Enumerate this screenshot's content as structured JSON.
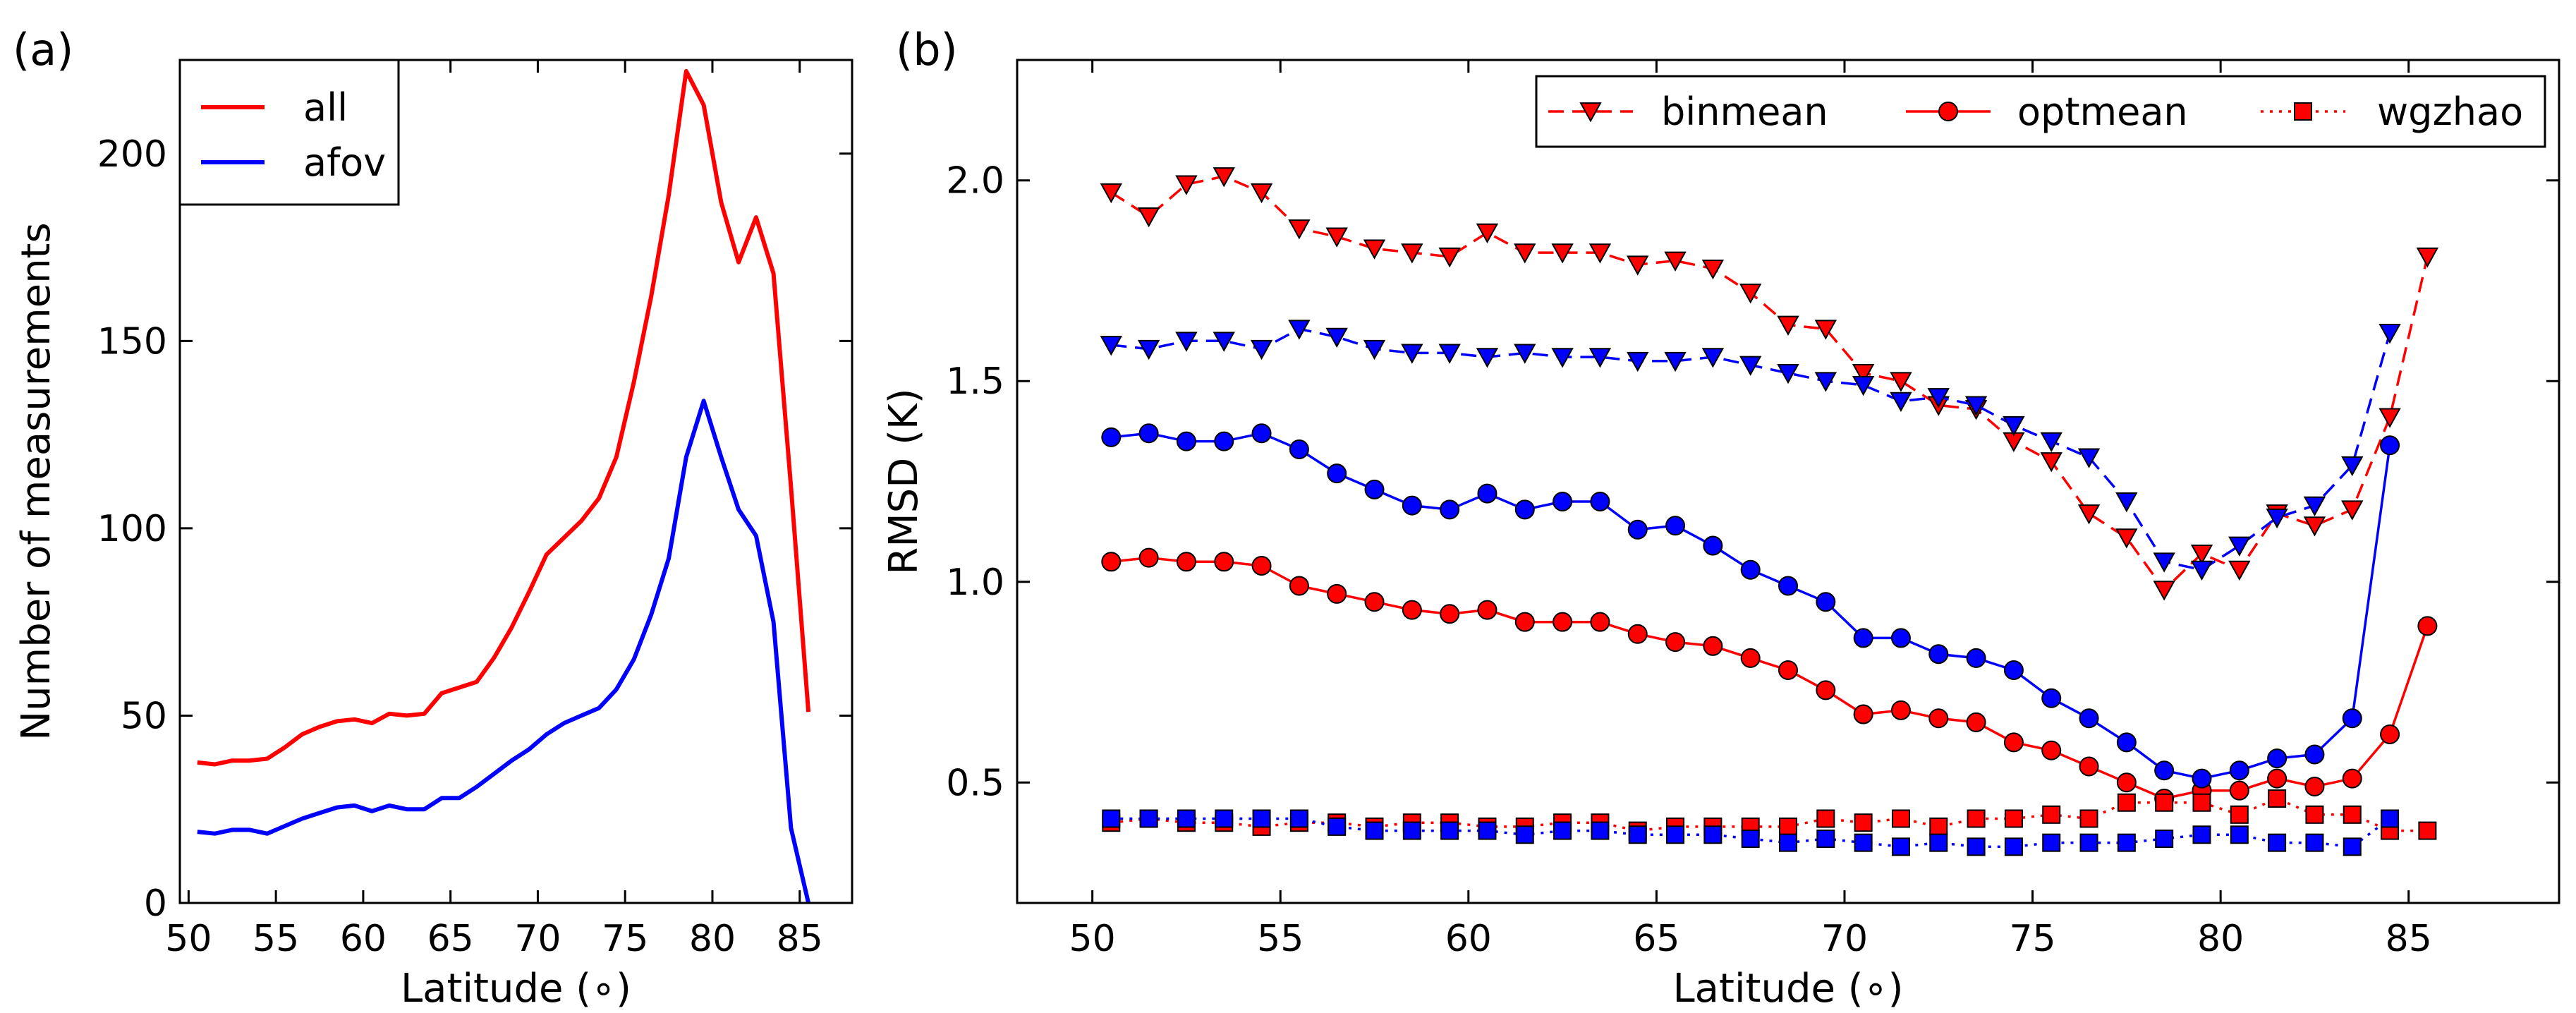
{
  "figure": {
    "panel_a_label": "(a)",
    "panel_b_label": "(b)"
  },
  "chart_data": [
    {
      "id": "a",
      "type": "line",
      "title": "",
      "xlabel": "Latitude (∘)",
      "ylabel": "Number of measurements",
      "xlim": [
        49.5,
        88
      ],
      "ylim": [
        0,
        225
      ],
      "xticks": [
        50,
        55,
        60,
        65,
        70,
        75,
        80,
        85
      ],
      "yticks": [
        0,
        50,
        100,
        150,
        200
      ],
      "grid": false,
      "legend": {
        "placement": "top-left"
      },
      "x": [
        50.5,
        51.5,
        52.5,
        53.5,
        54.5,
        55.5,
        56.5,
        57.5,
        58.5,
        59.5,
        60.5,
        61.5,
        62.5,
        63.5,
        64.5,
        65.5,
        66.5,
        67.5,
        68.5,
        69.5,
        70.5,
        71.5,
        72.5,
        73.5,
        74.5,
        75.5,
        76.5,
        77.5,
        78.5,
        79.5,
        80.5,
        81.5,
        82.5,
        83.5,
        84.5,
        85.5
      ],
      "series": [
        {
          "name": "all",
          "color": "#ff0000",
          "values": [
            37.5,
            37,
            38,
            38,
            38.5,
            41.5,
            45,
            47,
            48.5,
            49,
            48,
            50.5,
            50,
            50.5,
            56,
            57.5,
            59,
            65.5,
            73.5,
            83,
            93,
            97.5,
            102,
            108,
            119,
            139,
            162,
            189,
            222,
            213,
            187,
            171,
            183,
            168,
            111,
            51
          ]
        },
        {
          "name": "afov",
          "color": "#0000ff",
          "values": [
            19,
            18.5,
            19.5,
            19.5,
            18.5,
            20.5,
            22.5,
            24,
            25.5,
            26,
            24.5,
            26,
            25,
            25,
            28,
            28,
            31,
            34.5,
            38,
            41,
            45,
            48,
            50,
            52,
            57,
            65,
            77,
            92,
            119,
            134,
            119,
            105,
            98,
            75,
            20,
            0
          ]
        }
      ]
    },
    {
      "id": "b",
      "type": "line",
      "title": "",
      "xlabel": "Latitude (∘)",
      "ylabel": "RMSD (K)",
      "xlim": [
        48,
        89
      ],
      "ylim": [
        0.2,
        2.3
      ],
      "xticks": [
        50,
        55,
        60,
        65,
        70,
        75,
        80,
        85
      ],
      "yticks": [
        0.5,
        1.0,
        1.5,
        2.0
      ],
      "ytick_labels": [
        "0.5",
        "1.0",
        "1.5",
        "2.0"
      ],
      "grid": false,
      "legend": {
        "placement": "top-right",
        "entries": [
          "binmean",
          "optmean",
          "wgzhao"
        ]
      },
      "x": [
        50.5,
        51.5,
        52.5,
        53.5,
        54.5,
        55.5,
        56.5,
        57.5,
        58.5,
        59.5,
        60.5,
        61.5,
        62.5,
        63.5,
        64.5,
        65.5,
        66.5,
        67.5,
        68.5,
        69.5,
        70.5,
        71.5,
        72.5,
        73.5,
        74.5,
        75.5,
        76.5,
        77.5,
        78.5,
        79.5,
        80.5,
        81.5,
        82.5,
        83.5,
        84.5,
        85.5
      ],
      "series": [
        {
          "name": "binmean",
          "color": "#ff0000",
          "marker": "triangle-down",
          "linestyle": "dashed",
          "values": [
            1.97,
            1.91,
            1.99,
            2.01,
            1.97,
            1.88,
            1.86,
            1.83,
            1.82,
            1.81,
            1.87,
            1.82,
            1.82,
            1.82,
            1.79,
            1.8,
            1.78,
            1.72,
            1.64,
            1.63,
            1.52,
            1.5,
            1.44,
            1.43,
            1.35,
            1.3,
            1.17,
            1.11,
            0.98,
            1.07,
            1.03,
            1.17,
            1.14,
            1.18,
            1.41,
            1.81
          ]
        },
        {
          "name": "binmean",
          "color": "#0000ff",
          "marker": "triangle-down",
          "linestyle": "dashed",
          "values": [
            1.59,
            1.58,
            1.6,
            1.6,
            1.58,
            1.63,
            1.61,
            1.58,
            1.57,
            1.57,
            1.56,
            1.57,
            1.56,
            1.56,
            1.55,
            1.55,
            1.56,
            1.54,
            1.52,
            1.5,
            1.49,
            1.45,
            1.46,
            1.44,
            1.39,
            1.35,
            1.31,
            1.2,
            1.05,
            1.03,
            1.09,
            1.16,
            1.19,
            1.29,
            1.62,
            null
          ]
        },
        {
          "name": "optmean",
          "color": "#ff0000",
          "marker": "circle",
          "linestyle": "solid",
          "values": [
            1.05,
            1.06,
            1.05,
            1.05,
            1.04,
            0.99,
            0.97,
            0.95,
            0.93,
            0.92,
            0.93,
            0.9,
            0.9,
            0.9,
            0.87,
            0.85,
            0.84,
            0.81,
            0.78,
            0.73,
            0.67,
            0.68,
            0.66,
            0.65,
            0.6,
            0.58,
            0.54,
            0.5,
            0.46,
            0.48,
            0.48,
            0.51,
            0.49,
            0.51,
            0.62,
            0.89
          ]
        },
        {
          "name": "optmean",
          "color": "#0000ff",
          "marker": "circle",
          "linestyle": "solid",
          "values": [
            1.36,
            1.37,
            1.35,
            1.35,
            1.37,
            1.33,
            1.27,
            1.23,
            1.19,
            1.18,
            1.22,
            1.18,
            1.2,
            1.2,
            1.13,
            1.14,
            1.09,
            1.03,
            0.99,
            0.95,
            0.86,
            0.86,
            0.82,
            0.81,
            0.78,
            0.71,
            0.66,
            0.6,
            0.53,
            0.51,
            0.53,
            0.56,
            0.57,
            0.66,
            1.34,
            null
          ]
        },
        {
          "name": "wgzhao",
          "color": "#ff0000",
          "marker": "square",
          "linestyle": "dotted",
          "values": [
            0.4,
            0.41,
            0.4,
            0.4,
            0.39,
            0.4,
            0.4,
            0.39,
            0.4,
            0.4,
            0.39,
            0.39,
            0.4,
            0.4,
            0.38,
            0.39,
            0.39,
            0.39,
            0.39,
            0.41,
            0.4,
            0.41,
            0.39,
            0.41,
            0.41,
            0.42,
            0.41,
            0.45,
            0.45,
            0.45,
            0.42,
            0.46,
            0.42,
            0.42,
            0.38,
            0.38
          ]
        },
        {
          "name": "wgzhao",
          "color": "#0000ff",
          "marker": "square",
          "linestyle": "dotted",
          "values": [
            0.41,
            0.41,
            0.41,
            0.41,
            0.41,
            0.41,
            0.39,
            0.38,
            0.38,
            0.38,
            0.38,
            0.37,
            0.38,
            0.38,
            0.37,
            0.37,
            0.37,
            0.36,
            0.35,
            0.36,
            0.35,
            0.34,
            0.35,
            0.34,
            0.34,
            0.35,
            0.35,
            0.35,
            0.36,
            0.37,
            0.37,
            0.35,
            0.35,
            0.34,
            0.41,
            null
          ]
        }
      ]
    }
  ]
}
